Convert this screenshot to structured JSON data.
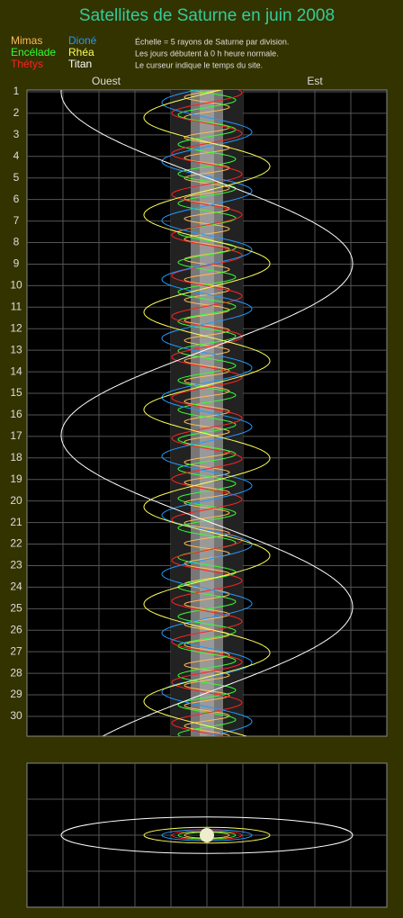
{
  "title": "Satellites de Saturne en juin 2008",
  "legend": [
    {
      "name": "Mimas",
      "color": "#ffbb55"
    },
    {
      "name": "Encélade",
      "color": "#33ff33"
    },
    {
      "name": "Thétys",
      "color": "#ff2222"
    },
    {
      "name": "Dioné",
      "color": "#2299ff"
    },
    {
      "name": "Rhéa",
      "color": "#ffff55"
    },
    {
      "name": "Titan",
      "color": "#ffffff"
    }
  ],
  "notes": [
    "Échelle = 5 rayons de Saturne par division.",
    "Les jours débutent à 0 h heure normale.",
    "Le curseur indique le temps du site."
  ],
  "directions": {
    "west": "Ouest",
    "east": "Est"
  },
  "days": [
    1,
    2,
    3,
    4,
    5,
    6,
    7,
    8,
    9,
    10,
    11,
    12,
    13,
    14,
    15,
    16,
    17,
    18,
    19,
    20,
    21,
    22,
    23,
    24,
    25,
    26,
    27,
    28,
    29,
    30
  ]
}
